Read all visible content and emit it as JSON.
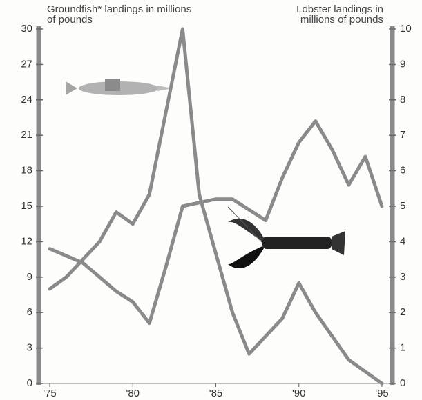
{
  "chart_data": {
    "type": "line",
    "x": [
      1975,
      1976,
      1977,
      1978,
      1979,
      1980,
      1981,
      1982,
      1983,
      1984,
      1985,
      1986,
      1987,
      1988,
      1989,
      1990,
      1991,
      1992,
      1993,
      1994,
      1995
    ],
    "series": [
      {
        "name": "Groundfish* landings in millions of pounds",
        "color": "#8a8a8a",
        "values": [
          8,
          9,
          10.5,
          12,
          14.5,
          13.5,
          16,
          23,
          30,
          16,
          11,
          6,
          2.5,
          4,
          5.5,
          8.5,
          6,
          4,
          2,
          1,
          0
        ]
      },
      {
        "name": "Lobster landings in millions of pounds",
        "color": "#8a8a8a",
        "axis": "y2",
        "values": [
          3.8,
          3.6,
          3.4,
          3.0,
          2.6,
          2.3,
          1.7,
          3.3,
          5.0,
          5.1,
          5.2,
          5.2,
          4.9,
          4.6,
          5.8,
          6.8,
          7.4,
          6.6,
          5.6,
          6.4,
          5.0
        ]
      }
    ],
    "xlim": [
      1975,
      1995
    ],
    "xticks": [
      {
        "value": 1975,
        "label": "'75"
      },
      {
        "value": 1980,
        "label": "'80"
      },
      {
        "value": 1985,
        "label": "'85"
      },
      {
        "value": 1990,
        "label": "'90"
      },
      {
        "value": 1995,
        "label": "'95"
      }
    ],
    "ylim": [
      0,
      30
    ],
    "yticks": [
      0,
      3,
      6,
      9,
      12,
      15,
      18,
      21,
      24,
      27,
      30
    ],
    "y2lim": [
      0,
      10
    ],
    "y2ticks": [
      0,
      1,
      2,
      3,
      4,
      5,
      6,
      7,
      8,
      9,
      10
    ]
  }
}
